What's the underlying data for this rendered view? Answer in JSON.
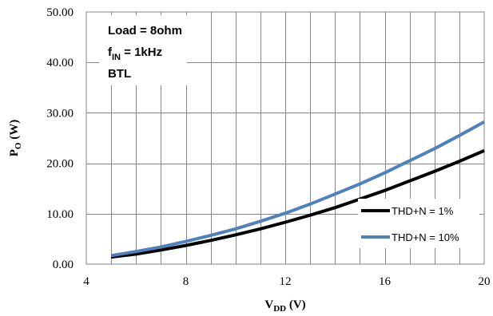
{
  "chart_data": {
    "type": "line",
    "xlabel": {
      "main": "V",
      "sub": "DD",
      "unit": " (V)"
    },
    "ylabel": {
      "main": "P",
      "sub": "O",
      "unit": " (W)"
    },
    "xlim": [
      4,
      20
    ],
    "ylim": [
      0,
      50
    ],
    "x_major_ticks": [
      4,
      8,
      12,
      16,
      20
    ],
    "x_tick_labels": [
      "4",
      "8",
      "12",
      "16",
      "20"
    ],
    "x_minor_step": 1,
    "y_ticks": [
      0,
      10,
      20,
      30,
      40,
      50
    ],
    "y_tick_labels": [
      "0.00",
      "10.00",
      "20.00",
      "30.00",
      "40.00",
      "50.00"
    ],
    "grid": true,
    "legend_position": "right",
    "annotations": {
      "line1": "Load = 8ohm",
      "line2": {
        "main": "f",
        "sub": "IN",
        "rest": " = 1kHz"
      },
      "line3": "BTL"
    },
    "series": [
      {
        "name": "THD+N = 1%",
        "color": "#000000",
        "x": [
          5,
          6,
          7,
          8,
          9,
          10,
          11,
          12,
          13,
          14,
          15,
          16,
          17,
          18,
          19,
          20
        ],
        "y": [
          1.4,
          2.0,
          2.8,
          3.7,
          4.7,
          5.8,
          7.0,
          8.3,
          9.7,
          11.2,
          12.9,
          14.6,
          16.5,
          18.4,
          20.4,
          22.5
        ]
      },
      {
        "name": "THD+N = 10%",
        "color": "#4F81BD",
        "x": [
          5,
          6,
          7,
          8,
          9,
          10,
          11,
          12,
          13,
          14,
          15,
          16,
          17,
          18,
          19,
          20
        ],
        "y": [
          1.7,
          2.5,
          3.4,
          4.5,
          5.7,
          7.0,
          8.5,
          10.1,
          11.9,
          13.9,
          15.9,
          18.1,
          20.5,
          22.9,
          25.5,
          28.2
        ]
      }
    ]
  }
}
